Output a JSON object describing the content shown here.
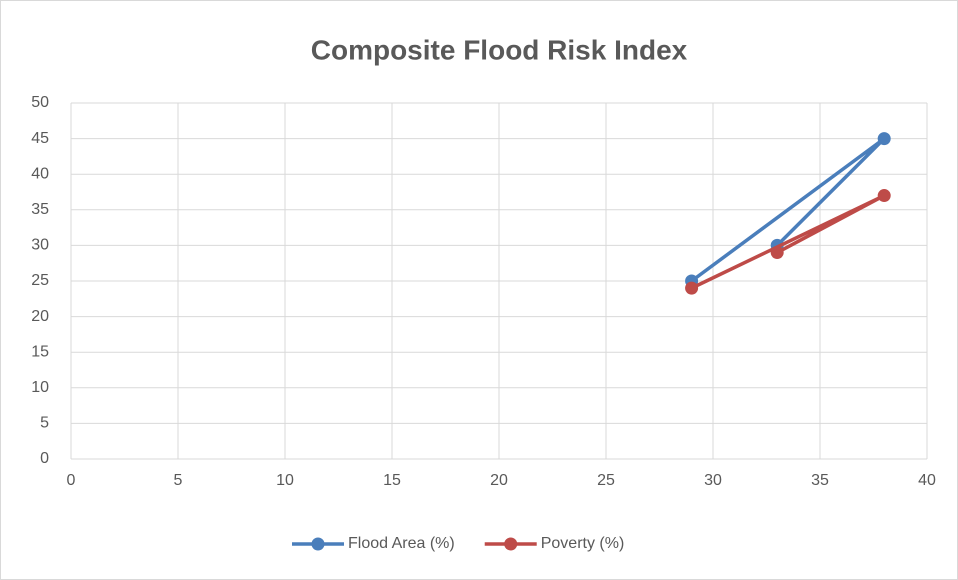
{
  "chart_data": {
    "type": "line",
    "title": "Composite Flood Risk Index",
    "x": [
      29,
      38,
      33
    ],
    "series": [
      {
        "name": "Flood Area (%)",
        "color": "#4a7ebb",
        "values": [
          25,
          45,
          30
        ]
      },
      {
        "name": "Poverty (%)",
        "color": "#be4b48",
        "values": [
          24,
          37,
          29
        ]
      }
    ],
    "xlim": [
      0,
      40
    ],
    "xticks": [
      0,
      5,
      10,
      15,
      20,
      25,
      30,
      35,
      40
    ],
    "ylim": [
      0,
      50
    ],
    "yticks": [
      0,
      5,
      10,
      15,
      20,
      25,
      30,
      35,
      40,
      45,
      50
    ],
    "grid": true,
    "legend": "bottom"
  }
}
